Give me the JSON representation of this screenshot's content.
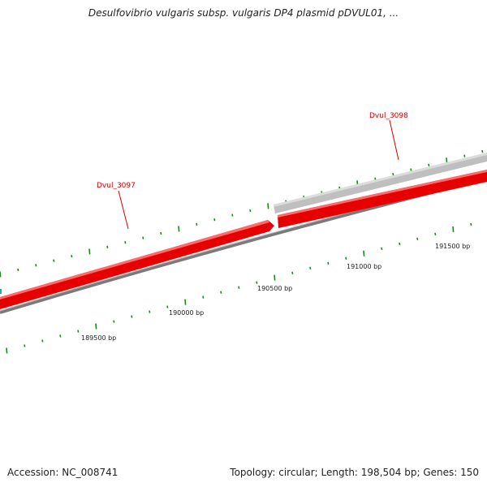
{
  "header": {
    "title": "Desulfovibrio vulgaris subsp. vulgaris DP4 plasmid pDVUL01, ..."
  },
  "footer": {
    "accession": "Accession: NC_008741",
    "summary": "Topology: circular; Length: 198,504 bp; Genes: 150"
  },
  "map": {
    "strand_colors": {
      "gene_forward": "#e60000",
      "gene_other": "#bfbfbf",
      "backbone": "#7a7a7a",
      "tick": "#1a8a1a",
      "label": "#cc0000"
    },
    "position_labels": [
      {
        "bp": 189500,
        "text": "189500 bp"
      },
      {
        "bp": 190000,
        "text": "190000 bp"
      },
      {
        "bp": 190500,
        "text": "190500 bp"
      },
      {
        "bp": 191000,
        "text": "191000 bp"
      },
      {
        "bp": 191500,
        "text": "191500 bp"
      }
    ],
    "genes": [
      {
        "locus": "Dvul_3097",
        "strand": "forward",
        "color_key": "gene_forward"
      },
      {
        "locus": "Dvul_3098",
        "strand": "forward",
        "color_key": "gene_forward"
      }
    ]
  }
}
